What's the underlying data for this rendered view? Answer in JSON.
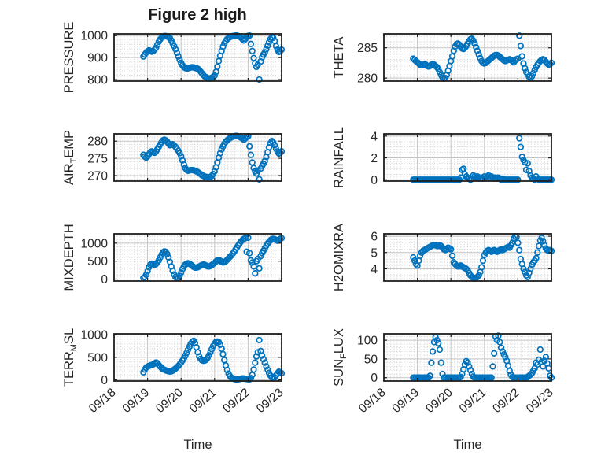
{
  "title": "Figure 2 high",
  "colors": {
    "marker": "#0072BD",
    "axis": "#1f1f1f",
    "major_grid": "#c4c4c4",
    "minor_grid": "#d2d2d2",
    "text": "#262626",
    "background": "#ffffff"
  },
  "chart_data": {
    "type": "scatter",
    "marker": "open-circle",
    "grid": "major solid + minor dotted",
    "legend_position": "none",
    "title": "Figure 2 high",
    "xlabel": "Time",
    "x_tick_labels": [
      "09/18",
      "09/19",
      "09/20",
      "09/21",
      "09/22",
      "09/23"
    ],
    "xticks_days": [
      0,
      1,
      2,
      3,
      4,
      5
    ],
    "xlim_days": [
      0,
      5
    ],
    "xminor_days": 0.1,
    "x_unit": "hours since 09/18 00:00",
    "x_hours": [
      21,
      22,
      23,
      24,
      25,
      26,
      27,
      28,
      29,
      30,
      31,
      32,
      33,
      34,
      35,
      36,
      37,
      38,
      39,
      40,
      41,
      42,
      43,
      44,
      45,
      46,
      47,
      48,
      49,
      50,
      51,
      52,
      53,
      54,
      55,
      56,
      57,
      58,
      59,
      60,
      61,
      62,
      63,
      64,
      65,
      66,
      67,
      68,
      69,
      70,
      71,
      72,
      73,
      74,
      75,
      76,
      77,
      78,
      79,
      80,
      81,
      82,
      83,
      84,
      85,
      86,
      87,
      88,
      89,
      90,
      91,
      92,
      93,
      94,
      95,
      96,
      97,
      98,
      99,
      100,
      101,
      102,
      103,
      104,
      105,
      106,
      107,
      108,
      109,
      110,
      111,
      112,
      113,
      114,
      115,
      116,
      117,
      118,
      119,
      120
    ],
    "panels": [
      {
        "id": "pressure",
        "name": "PRESSURE",
        "ylabel": {
          "pre": "PRESSURE",
          "sub": "",
          "post": ""
        },
        "yticks": [
          800,
          900,
          1000
        ],
        "ylim": [
          793,
          1008
        ],
        "yminor": 20,
        "values": [
          905,
          915,
          922,
          928,
          933,
          930,
          927,
          929,
          936,
          945,
          958,
          972,
          983,
          991,
          996,
          998,
          998,
          996,
          993,
          989,
          978,
          965,
          952,
          938,
          922,
          905,
          890,
          876,
          865,
          857,
          852,
          850,
          851,
          853,
          855,
          856,
          855,
          853,
          851,
          849,
          843,
          836,
          828,
          820,
          814,
          810,
          807,
          805,
          806,
          808,
          812,
          818,
          835,
          858,
          884,
          908,
          930,
          950,
          965,
          976,
          984,
          989,
          993,
          996,
          998,
          999,
          1000,
          1000,
          998,
          995,
          990,
          984,
          978,
          985,
          993,
          999,
          1000,
          962,
          930,
          898,
          874,
          858,
          868,
          800,
          882,
          902,
          914,
          924,
          938,
          954,
          970,
          984,
          994,
          990,
          976,
          952,
          936,
          926,
          929,
          936
        ]
      },
      {
        "id": "theta",
        "name": "THETA",
        "ylabel": {
          "pre": "THETA",
          "sub": "",
          "post": ""
        },
        "yticks": [
          280,
          285
        ],
        "ylim": [
          279.5,
          287.3
        ],
        "yminor": 1,
        "values": [
          283.2,
          283.0,
          282.8,
          282.6,
          282.4,
          282.2,
          282.1,
          282.2,
          282.3,
          282.2,
          282.0,
          281.9,
          282.0,
          282.2,
          282.3,
          282.2,
          282.0,
          281.8,
          281.5,
          281.0,
          280.5,
          280.1,
          279.9,
          280.0,
          280.5,
          281.2,
          282.0,
          282.8,
          283.6,
          284.5,
          285.2,
          285.6,
          285.7,
          285.5,
          285.2,
          284.9,
          284.8,
          285.0,
          285.3,
          285.7,
          286.1,
          286.4,
          286.5,
          286.2,
          285.7,
          285.1,
          284.5,
          283.9,
          283.3,
          282.8,
          282.5,
          282.4,
          282.5,
          282.7,
          282.9,
          283.1,
          283.3,
          283.5,
          283.7,
          283.8,
          283.8,
          283.7,
          283.5,
          283.3,
          283.1,
          282.9,
          282.8,
          282.9,
          283.0,
          283.1,
          283.0,
          282.8,
          282.6,
          282.9,
          283.1,
          283.2,
          287.0,
          285.3,
          283.6,
          282.4,
          281.6,
          281.0,
          280.6,
          280.2,
          280.0,
          280.3,
          280.8,
          281.3,
          281.8,
          282.2,
          282.5,
          282.8,
          283.0,
          283.1,
          283.0,
          282.7,
          282.4,
          282.2,
          282.3,
          282.5
        ]
      },
      {
        "id": "air_temp",
        "name": "AIR_TEMP",
        "ylabel": {
          "pre": "AIR",
          "sub": "T",
          "post": "EMP"
        },
        "yticks": [
          270,
          275,
          280
        ],
        "ylim": [
          268.4,
          282.1
        ],
        "yminor": 1,
        "values": [
          276.0,
          275.5,
          275.2,
          275.6,
          276.2,
          276.8,
          277.0,
          276.8,
          276.6,
          277.0,
          277.6,
          278.3,
          279.0,
          279.7,
          280.2,
          280.4,
          280.2,
          279.8,
          279.3,
          278.8,
          278.9,
          279.1,
          278.8,
          278.3,
          277.8,
          277.2,
          276.5,
          275.6,
          274.4,
          273.2,
          272.2,
          271.6,
          271.4,
          271.5,
          271.6,
          271.6,
          271.5,
          271.4,
          271.2,
          271.0,
          270.7,
          270.4,
          270.1,
          269.9,
          269.7,
          269.6,
          269.5,
          269.5,
          269.6,
          269.9,
          270.4,
          271.2,
          272.4,
          273.8,
          275.2,
          276.5,
          277.6,
          278.5,
          279.2,
          279.8,
          280.2,
          280.6,
          280.9,
          281.1,
          281.3,
          281.4,
          281.5,
          281.5,
          281.4,
          281.2,
          281.0,
          280.7,
          280.4,
          280.8,
          281.2,
          281.4,
          278.5,
          276.0,
          273.8,
          272.2,
          271.2,
          270.6,
          271.4,
          268.9,
          272.0,
          272.8,
          273.4,
          274.2,
          275.4,
          276.8,
          278.2,
          279.4,
          280.0,
          279.6,
          278.8,
          277.8,
          277.0,
          276.4,
          276.6,
          277.0
        ]
      },
      {
        "id": "rainfall",
        "name": "RAINFALL",
        "ylabel": {
          "pre": "RAINFALL",
          "sub": "",
          "post": ""
        },
        "yticks": [
          0,
          2,
          4
        ],
        "ylim": [
          -0.12,
          4.2
        ],
        "yminor": 0.5,
        "values": [
          0,
          0,
          0,
          0,
          0,
          0,
          0,
          0,
          0,
          0,
          0,
          0,
          0,
          0,
          0,
          0,
          0,
          0,
          0,
          0,
          0,
          0,
          0,
          0,
          0,
          0,
          0,
          0,
          0,
          0,
          0,
          0,
          0,
          0,
          0.2,
          0.9,
          1.0,
          0.5,
          0.3,
          0.2,
          0.1,
          0,
          0.1,
          0.4,
          0.3,
          0.2,
          0.3,
          0.2,
          0.1,
          0.2,
          0.1,
          0.3,
          0.2,
          0.3,
          0.4,
          0.2,
          0.3,
          0.2,
          0.1,
          0.2,
          0.1,
          0.2,
          0.1,
          0,
          0.1,
          0,
          0,
          0,
          0,
          0,
          0,
          0,
          0,
          0,
          0,
          0,
          3.8,
          3.0,
          2.1,
          1.8,
          1.6,
          0.9,
          1.5,
          0.8,
          0.4,
          0.2,
          0.1,
          0,
          0.3,
          0.1,
          0,
          0,
          0,
          0,
          0,
          0,
          0,
          0,
          0,
          0
        ]
      },
      {
        "id": "mixdepth",
        "name": "MIXDEPTH",
        "ylabel": {
          "pre": "MIXDEPTH",
          "sub": "",
          "post": ""
        },
        "yticks": [
          0,
          500,
          1000
        ],
        "ylim": [
          -55,
          1260
        ],
        "yminor": 100,
        "values": [
          30,
          60,
          120,
          220,
          330,
          400,
          430,
          420,
          400,
          420,
          460,
          520,
          600,
          680,
          740,
          770,
          760,
          700,
          600,
          480,
          350,
          230,
          130,
          60,
          20,
          30,
          90,
          180,
          280,
          350,
          400,
          430,
          440,
          430,
          400,
          370,
          340,
          320,
          320,
          330,
          350,
          375,
          395,
          405,
          395,
          375,
          355,
          350,
          365,
          390,
          420,
          450,
          490,
          520,
          530,
          510,
          480,
          460,
          470,
          500,
          540,
          580,
          620,
          660,
          710,
          760,
          820,
          880,
          940,
          1000,
          1050,
          1090,
          1120,
          1140,
          760,
          1150,
          720,
          520,
          460,
          350,
          160,
          500,
          560,
          300,
          640,
          720,
          790,
          860,
          930,
          990,
          1040,
          1080,
          1110,
          1120,
          1110,
          1090,
          1070,
          1090,
          1120,
          1140
        ]
      },
      {
        "id": "h2omixra",
        "name": "H2OMIXRA",
        "ylabel": {
          "pre": "H2OMIXRA",
          "sub": "",
          "post": ""
        },
        "yticks": [
          4,
          5,
          6
        ],
        "ylim": [
          3.25,
          6.15
        ],
        "yminor": 0.2,
        "values": [
          4.7,
          4.5,
          4.3,
          4.2,
          4.5,
          4.8,
          5.0,
          5.1,
          5.15,
          5.2,
          5.25,
          5.3,
          5.35,
          5.4,
          5.45,
          5.45,
          5.45,
          5.4,
          5.4,
          5.45,
          5.4,
          5.3,
          5.2,
          5.15,
          5.2,
          5.3,
          5.25,
          5.2,
          4.8,
          4.4,
          4.3,
          4.2,
          4.15,
          4.15,
          4.2,
          4.15,
          4.1,
          4.05,
          4.0,
          3.9,
          3.75,
          3.6,
          3.5,
          3.45,
          3.4,
          3.45,
          3.5,
          3.6,
          3.8,
          4.1,
          4.5,
          4.85,
          5.0,
          5.1,
          5.15,
          5.1,
          5.05,
          5.1,
          5.15,
          5.1,
          5.05,
          5.1,
          5.15,
          5.2,
          5.15,
          5.2,
          5.25,
          5.3,
          5.35,
          5.3,
          5.45,
          5.6,
          5.85,
          6.0,
          5.95,
          5.6,
          5.15,
          4.6,
          4.3,
          4.0,
          3.8,
          3.6,
          3.5,
          3.75,
          4.0,
          4.25,
          4.4,
          4.5,
          4.65,
          5.0,
          5.4,
          5.75,
          5.9,
          5.7,
          5.45,
          5.25,
          5.15,
          5.1,
          5.15,
          5.1
        ]
      },
      {
        "id": "terr_msl",
        "name": "TERR_MSL",
        "ylabel": {
          "pre": "TERR",
          "sub": "M",
          "post": "SL"
        },
        "yticks": [
          0,
          500,
          1000
        ],
        "ylim": [
          -25,
          1020
        ],
        "yminor": 100,
        "values": [
          170,
          230,
          270,
          295,
          310,
          320,
          330,
          345,
          365,
          385,
          370,
          330,
          295,
          265,
          240,
          225,
          210,
          200,
          192,
          186,
          190,
          205,
          225,
          250,
          280,
          310,
          345,
          385,
          430,
          480,
          535,
          600,
          670,
          740,
          800,
          845,
          865,
          820,
          720,
          610,
          520,
          465,
          435,
          425,
          430,
          450,
          490,
          545,
          610,
          680,
          750,
          805,
          840,
          850,
          835,
          780,
          690,
          570,
          440,
          320,
          220,
          140,
          85,
          50,
          30,
          18,
          12,
          10,
          12,
          18,
          25,
          32,
          30,
          24,
          18,
          14,
          12,
          40,
          110,
          230,
          380,
          520,
          610,
          880,
          640,
          540,
          460,
          380,
          300,
          225,
          155,
          95,
          55,
          35,
          55,
          100,
          145,
          180,
          165,
          145
        ]
      },
      {
        "id": "sun_flux",
        "name": "SUN_FLUX",
        "ylabel": {
          "pre": "SUN",
          "sub": "F",
          "post": "LUX"
        },
        "yticks": [
          0,
          50,
          100
        ],
        "ylim": [
          -9,
          117
        ],
        "yminor": 10,
        "values": [
          0,
          0,
          0,
          0,
          0,
          0,
          0,
          0,
          0,
          0,
          0,
          0,
          5,
          40,
          70,
          95,
          108,
          100,
          92,
          75,
          40,
          10,
          0,
          0,
          0,
          0,
          0,
          0,
          0,
          0,
          0,
          0,
          0,
          0,
          2,
          10,
          22,
          35,
          44,
          40,
          30,
          20,
          10,
          3,
          0,
          0,
          0,
          0,
          0,
          0,
          0,
          0,
          0,
          0,
          0,
          0,
          0,
          30,
          65,
          110,
          100,
          112,
          95,
          80,
          70,
          62,
          55,
          45,
          32,
          18,
          8,
          2,
          0,
          0,
          0,
          0,
          0,
          0,
          0,
          0,
          0,
          0,
          2,
          5,
          8,
          12,
          18,
          25,
          40,
          35,
          48,
          75,
          42,
          30,
          45,
          55,
          38,
          25,
          5,
          0
        ]
      }
    ]
  }
}
